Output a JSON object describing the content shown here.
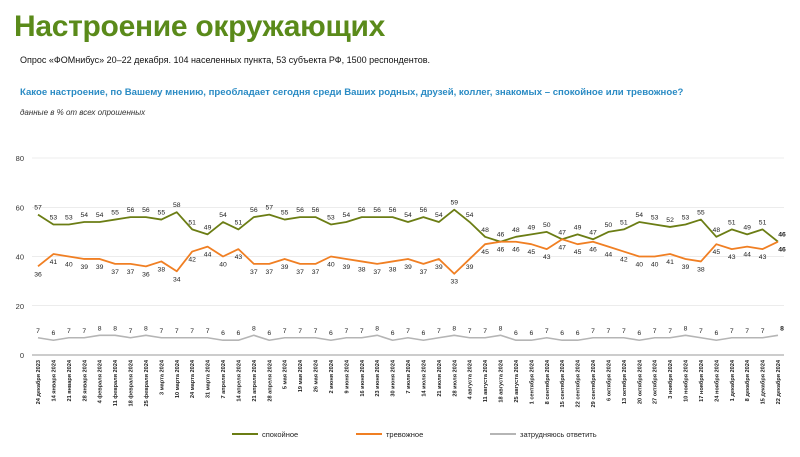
{
  "header": {
    "title": "Настроение окружающих",
    "subtitle": "Опрос «ФОМнибус» 20–22 декабря. 104 населенных пункта, 53 субъекта РФ, 1500 респондентов.",
    "question": "Какое настроение, по Вашему мнению, преобладает сегодня среди Ваших родных, друзей, коллег, знакомых – спокойное или тревожное?",
    "note": "данные в % от всех опрошенных"
  },
  "colors": {
    "calm": "#6b7d14",
    "anxious": "#f07f23",
    "unsure": "#b5b5b5"
  },
  "chart_data": {
    "type": "line",
    "ylim": [
      0,
      80
    ],
    "yticks": [
      0,
      20,
      40,
      60,
      80
    ],
    "grid": true,
    "legend_position": "bottom",
    "x": [
      "24 декабря 2023",
      "14 января 2024",
      "21 января 2024",
      "28 января 2024",
      "4 февраля 2024",
      "11 февраля 2024",
      "18 февраля 2024",
      "25 февраля 2024",
      "3 марта 2024",
      "10 марта 2024",
      "24 марта 2024",
      "31 марта 2024",
      "7 апреля 2024",
      "14 апреля 2024",
      "21 апреля 2024",
      "28 апреля 2024",
      "5 мая 2024",
      "19 мая 2024",
      "26 мая 2024",
      "2 июня 2024",
      "9 июня 2024",
      "16 июня 2024",
      "23 июня 2024",
      "30 июня 2024",
      "7 июля 2024",
      "14 июля 2024",
      "21 июля 2024",
      "28 июля 2024",
      "4 августа 2024",
      "11 августа 2024",
      "18 августа 2024",
      "25 августа 2024",
      "1 сентября 2024",
      "8 сентября 2024",
      "15 сентября 2024",
      "22 сентября 2024",
      "29 сентября 2024",
      "6 октября 2024",
      "13 октября 2024",
      "20 октября 2024",
      "27 октября 2024",
      "3 ноября 2024",
      "10 ноября 2024",
      "17 ноября 2024",
      "24 ноября 2024",
      "1 декабря 2024",
      "8 декабря 2024",
      "15 декабря 2024",
      "22 декабря 2024"
    ],
    "series": [
      {
        "name": "спокойное",
        "key": "calm",
        "values": [
          57,
          53,
          53,
          54,
          54,
          55,
          56,
          56,
          55,
          58,
          51,
          49,
          54,
          51,
          56,
          57,
          55,
          56,
          56,
          53,
          54,
          56,
          56,
          56,
          54,
          56,
          54,
          59,
          54,
          48,
          46,
          48,
          49,
          50,
          47,
          49,
          47,
          50,
          51,
          54,
          53,
          52,
          53,
          55,
          48,
          51,
          49,
          51,
          46
        ],
        "label_offsets": [
          -1,
          -1,
          -1,
          -1,
          -1,
          -1,
          -1,
          -1,
          -1,
          -1,
          -1,
          -1,
          -1,
          -1,
          -1,
          -1,
          -1,
          -1,
          -1,
          -1,
          -1,
          -1,
          -1,
          -1,
          -1,
          -1,
          -1,
          -1,
          -1,
          -1,
          -1,
          -1,
          -1,
          -1,
          -1,
          -1,
          -1,
          -1,
          -1,
          -1,
          -1,
          -1,
          -1,
          -1,
          -1,
          -1,
          -1,
          -1,
          -1
        ]
      },
      {
        "name": "тревожное",
        "key": "anxious",
        "values": [
          36,
          41,
          40,
          39,
          39,
          37,
          37,
          36,
          38,
          34,
          42,
          44,
          40,
          43,
          37,
          37,
          39,
          37,
          37,
          40,
          39,
          38,
          37,
          38,
          39,
          37,
          39,
          33,
          39,
          45,
          46,
          46,
          45,
          43,
          47,
          45,
          46,
          44,
          42,
          40,
          40,
          41,
          39,
          38,
          45,
          43,
          44,
          43,
          46
        ],
        "label_offsets": [
          1,
          1,
          1,
          1,
          1,
          1,
          1,
          1,
          1,
          1,
          1,
          1,
          1,
          1,
          1,
          1,
          1,
          1,
          1,
          1,
          1,
          1,
          1,
          1,
          1,
          1,
          1,
          1,
          1,
          1,
          1,
          1,
          1,
          1,
          1,
          1,
          1,
          1,
          1,
          1,
          1,
          1,
          1,
          1,
          1,
          1,
          1,
          1,
          1
        ]
      },
      {
        "name": "затрудняюсь ответить",
        "key": "unsure",
        "values": [
          7,
          6,
          7,
          7,
          8,
          8,
          7,
          8,
          7,
          7,
          7,
          7,
          6,
          6,
          8,
          6,
          7,
          7,
          7,
          6,
          7,
          7,
          8,
          6,
          7,
          6,
          7,
          8,
          7,
          7,
          8,
          6,
          6,
          7,
          6,
          6,
          7,
          7,
          7,
          6,
          7,
          7,
          8,
          7,
          6,
          7,
          7,
          7,
          8
        ],
        "label_offsets": [
          -1,
          -1,
          -1,
          -1,
          -1,
          -1,
          -1,
          -1,
          -1,
          -1,
          -1,
          -1,
          -1,
          -1,
          -1,
          -1,
          -1,
          -1,
          -1,
          -1,
          -1,
          -1,
          -1,
          -1,
          -1,
          -1,
          -1,
          -1,
          -1,
          -1,
          -1,
          -1,
          -1,
          -1,
          -1,
          -1,
          -1,
          -1,
          -1,
          -1,
          -1,
          -1,
          -1,
          -1,
          -1,
          -1,
          -1,
          -1,
          -1
        ]
      }
    ]
  }
}
